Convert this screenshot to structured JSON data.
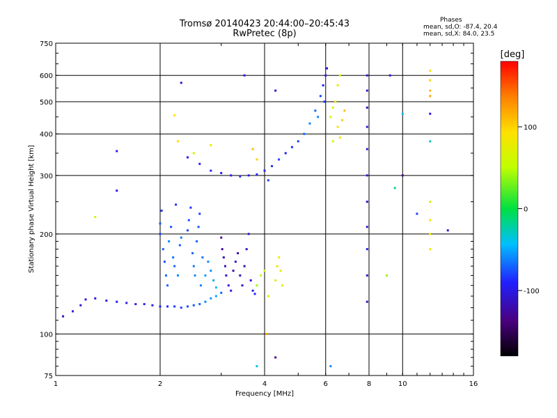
{
  "header": {
    "title_line1": "Tromsø 20140423 20:44:00–20:45:43",
    "title_line2": "RwPretec (8p)"
  },
  "stats": {
    "title": "Phases",
    "line_o": "mean, sd,O: -87.4, 20.4",
    "line_x": "mean, sd,X: 84.0, 23.5"
  },
  "colorbar": {
    "unit": "[deg]",
    "range": [
      -180,
      180
    ],
    "ticks": [
      {
        "value": 100,
        "label": "100"
      },
      {
        "value": 0,
        "label": "0"
      },
      {
        "value": -100,
        "label": "-100"
      }
    ]
  },
  "chart_data": {
    "type": "scatter",
    "xlabel": "Frequency [MHz]",
    "ylabel": "Stationary phase Virtual Height [km]",
    "x_scale": "log",
    "y_scale": "log",
    "xlim": [
      1,
      16
    ],
    "ylim": [
      75,
      750
    ],
    "grid": true,
    "x_ticks": [
      {
        "value": 1,
        "label": "1"
      },
      {
        "value": 2,
        "label": "2"
      },
      {
        "value": 4,
        "label": "4"
      },
      {
        "value": 6,
        "label": "6"
      },
      {
        "value": 8,
        "label": "8"
      },
      {
        "value": 10,
        "label": "10"
      },
      {
        "value": 16,
        "label": "16"
      }
    ],
    "y_ticks": [
      {
        "value": 75,
        "label": "75"
      },
      {
        "value": 100,
        "label": "100"
      },
      {
        "value": 200,
        "label": "200"
      },
      {
        "value": 300,
        "label": "300"
      },
      {
        "value": 400,
        "label": "400"
      },
      {
        "value": 500,
        "label": "500"
      },
      {
        "value": 600,
        "label": "600"
      },
      {
        "value": 750,
        "label": "750"
      }
    ],
    "points": [
      [
        1.05,
        113,
        -110
      ],
      [
        1.12,
        117,
        -100
      ],
      [
        1.18,
        122,
        -110
      ],
      [
        1.22,
        127,
        -105
      ],
      [
        1.3,
        128,
        -100
      ],
      [
        1.4,
        126,
        -95
      ],
      [
        1.5,
        125,
        -100
      ],
      [
        1.6,
        124,
        -98
      ],
      [
        1.7,
        123,
        -92
      ],
      [
        1.8,
        123,
        -90
      ],
      [
        1.9,
        122,
        -95
      ],
      [
        2.0,
        121,
        -92
      ],
      [
        2.1,
        121,
        -88
      ],
      [
        2.2,
        121,
        -85
      ],
      [
        2.3,
        120,
        -80
      ],
      [
        2.4,
        121,
        -78
      ],
      [
        2.5,
        122,
        -75
      ],
      [
        2.6,
        123,
        -70
      ],
      [
        2.7,
        125,
        -60
      ],
      [
        2.8,
        128,
        -55
      ],
      [
        2.9,
        130,
        -50
      ],
      [
        3.0,
        133,
        -70
      ],
      [
        2.0,
        200,
        -80
      ],
      [
        2.0,
        215,
        -75
      ],
      [
        2.02,
        235,
        -85
      ],
      [
        2.04,
        180,
        -70
      ],
      [
        2.06,
        165,
        -78
      ],
      [
        2.08,
        150,
        -68
      ],
      [
        2.1,
        140,
        -72
      ],
      [
        2.12,
        190,
        -60
      ],
      [
        2.15,
        210,
        -75
      ],
      [
        2.18,
        170,
        -65
      ],
      [
        2.2,
        160,
        -70
      ],
      [
        2.22,
        245,
        -85
      ],
      [
        2.25,
        150,
        -60
      ],
      [
        2.28,
        185,
        -70
      ],
      [
        2.3,
        195,
        -65
      ],
      [
        2.4,
        205,
        -80
      ],
      [
        2.42,
        220,
        -78
      ],
      [
        2.45,
        240,
        -85
      ],
      [
        2.48,
        175,
        -70
      ],
      [
        2.5,
        160,
        -65
      ],
      [
        2.52,
        150,
        -60
      ],
      [
        2.55,
        190,
        -72
      ],
      [
        2.58,
        210,
        -75
      ],
      [
        2.6,
        230,
        -80
      ],
      [
        2.62,
        140,
        -62
      ],
      [
        2.65,
        170,
        -66
      ],
      [
        2.7,
        150,
        -55
      ],
      [
        2.75,
        165,
        -60
      ],
      [
        2.8,
        155,
        -58
      ],
      [
        2.85,
        145,
        -50
      ],
      [
        2.9,
        138,
        -45
      ],
      [
        3.0,
        195,
        -130
      ],
      [
        3.02,
        180,
        -125
      ],
      [
        3.05,
        170,
        -120
      ],
      [
        3.08,
        160,
        -115
      ],
      [
        3.1,
        150,
        -110
      ],
      [
        3.15,
        140,
        -105
      ],
      [
        3.2,
        135,
        -100
      ],
      [
        3.25,
        155,
        -120
      ],
      [
        3.3,
        165,
        -110
      ],
      [
        3.35,
        175,
        -125
      ],
      [
        3.4,
        150,
        -115
      ],
      [
        3.45,
        140,
        -110
      ],
      [
        3.5,
        160,
        -120
      ],
      [
        3.55,
        180,
        -115
      ],
      [
        3.6,
        200,
        -110
      ],
      [
        3.65,
        145,
        -100
      ],
      [
        3.7,
        135,
        -95
      ],
      [
        3.75,
        132,
        -90
      ],
      [
        3.8,
        140,
        40
      ],
      [
        3.9,
        150,
        50
      ],
      [
        4.0,
        155,
        60
      ],
      [
        4.3,
        145,
        80
      ],
      [
        4.35,
        160,
        85
      ],
      [
        4.4,
        170,
        90
      ],
      [
        4.45,
        155,
        75
      ],
      [
        4.5,
        140,
        70
      ],
      [
        4.1,
        130,
        65
      ],
      [
        2.4,
        340,
        -100
      ],
      [
        2.6,
        325,
        -95
      ],
      [
        2.8,
        310,
        -90
      ],
      [
        3.0,
        305,
        -100
      ],
      [
        3.2,
        300,
        -95
      ],
      [
        3.4,
        298,
        -90
      ],
      [
        3.6,
        300,
        -100
      ],
      [
        3.8,
        302,
        -95
      ],
      [
        4.0,
        310,
        -90
      ],
      [
        4.2,
        320,
        -85
      ],
      [
        4.4,
        335,
        -80
      ],
      [
        4.6,
        350,
        -90
      ],
      [
        4.8,
        365,
        -85
      ],
      [
        5.0,
        380,
        -80
      ],
      [
        5.2,
        400,
        -70
      ],
      [
        5.4,
        430,
        -60
      ],
      [
        5.6,
        470,
        -70
      ],
      [
        5.8,
        520,
        -80
      ],
      [
        5.9,
        560,
        -90
      ],
      [
        6.0,
        600,
        -100
      ],
      [
        6.05,
        630,
        -110
      ],
      [
        5.95,
        500,
        -85
      ],
      [
        5.7,
        450,
        -60
      ],
      [
        6.2,
        450,
        60
      ],
      [
        6.3,
        480,
        70
      ],
      [
        6.4,
        500,
        80
      ],
      [
        6.5,
        420,
        85
      ],
      [
        6.6,
        390,
        90
      ],
      [
        6.7,
        440,
        100
      ],
      [
        6.8,
        470,
        110
      ],
      [
        6.5,
        560,
        75
      ],
      [
        6.6,
        600,
        70
      ],
      [
        6.3,
        380,
        60
      ],
      [
        7.9,
        600,
        -100
      ],
      [
        7.9,
        540,
        -105
      ],
      [
        7.9,
        480,
        -110
      ],
      [
        7.9,
        420,
        -100
      ],
      [
        7.9,
        360,
        -95
      ],
      [
        7.9,
        300,
        -105
      ],
      [
        7.9,
        250,
        -110
      ],
      [
        7.9,
        210,
        -100
      ],
      [
        7.9,
        180,
        -95
      ],
      [
        7.9,
        150,
        -105
      ],
      [
        7.9,
        125,
        -110
      ],
      [
        12.0,
        620,
        90
      ],
      [
        12.0,
        580,
        100
      ],
      [
        12.0,
        540,
        110
      ],
      [
        12.0,
        520,
        120
      ],
      [
        12.0,
        250,
        70
      ],
      [
        12.0,
        220,
        80
      ],
      [
        12.0,
        200,
        85
      ],
      [
        12.0,
        180,
        75
      ],
      [
        12.0,
        460,
        -100
      ],
      [
        12.0,
        380,
        -30
      ],
      [
        2.2,
        455,
        90
      ],
      [
        2.25,
        380,
        95
      ],
      [
        2.5,
        350,
        60
      ],
      [
        2.8,
        370,
        80
      ],
      [
        3.7,
        360,
        110
      ],
      [
        3.8,
        335,
        100
      ],
      [
        1.5,
        355,
        -100
      ],
      [
        1.5,
        270,
        -100
      ],
      [
        1.3,
        225,
        60
      ],
      [
        2.3,
        570,
        -110
      ],
      [
        3.5,
        600,
        -100
      ],
      [
        4.3,
        540,
        -110
      ],
      [
        4.1,
        290,
        -80
      ],
      [
        4.05,
        100,
        120
      ],
      [
        4.3,
        85,
        -130
      ],
      [
        3.8,
        80,
        -40
      ],
      [
        6.2,
        80,
        -60
      ],
      [
        9.2,
        600,
        -100
      ],
      [
        10.0,
        460,
        -40
      ],
      [
        10.0,
        300,
        -130
      ],
      [
        11.0,
        230,
        -80
      ],
      [
        13.5,
        205,
        -100
      ],
      [
        9.0,
        150,
        40
      ],
      [
        9.5,
        275,
        -20
      ]
    ]
  }
}
